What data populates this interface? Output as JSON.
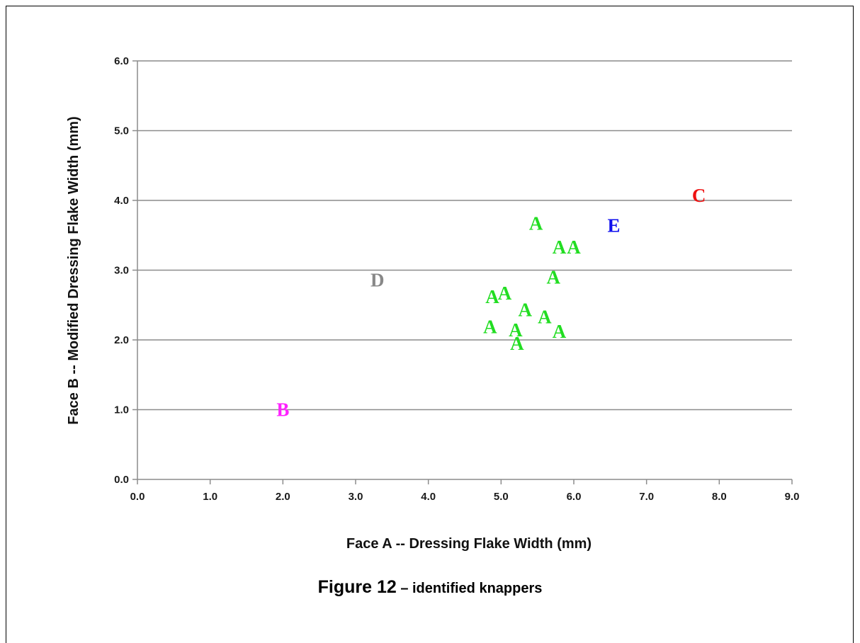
{
  "chart_data": {
    "type": "scatter",
    "xlabel": "Face A --  Dressing Flake Width (mm)",
    "ylabel": "Face B -- Modified Dressing Flake Width (mm)",
    "xlim": [
      0,
      9
    ],
    "ylim": [
      0,
      6
    ],
    "x_ticks": [
      "0.0",
      "1.0",
      "2.0",
      "3.0",
      "4.0",
      "5.0",
      "6.0",
      "7.0",
      "8.0",
      "9.0"
    ],
    "y_ticks": [
      "0.0",
      "1.0",
      "2.0",
      "3.0",
      "4.0",
      "5.0",
      "6.0"
    ],
    "grid": "horizontal",
    "series": [
      {
        "name": "A",
        "color": "#22dd22",
        "points": [
          {
            "x": 5.48,
            "y": 3.67
          },
          {
            "x": 5.8,
            "y": 3.33
          },
          {
            "x": 6.0,
            "y": 3.33
          },
          {
            "x": 5.72,
            "y": 2.9
          },
          {
            "x": 4.88,
            "y": 2.62
          },
          {
            "x": 5.05,
            "y": 2.67
          },
          {
            "x": 5.33,
            "y": 2.43
          },
          {
            "x": 5.6,
            "y": 2.33
          },
          {
            "x": 4.85,
            "y": 2.19
          },
          {
            "x": 5.2,
            "y": 2.14
          },
          {
            "x": 5.8,
            "y": 2.12
          },
          {
            "x": 5.22,
            "y": 1.95
          }
        ]
      },
      {
        "name": "B",
        "color": "#ff22ff",
        "points": [
          {
            "x": 2.0,
            "y": 1.0
          }
        ]
      },
      {
        "name": "C",
        "color": "#ee1111",
        "points": [
          {
            "x": 7.72,
            "y": 4.07
          }
        ]
      },
      {
        "name": "D",
        "color": "#888888",
        "points": [
          {
            "x": 3.3,
            "y": 2.86
          }
        ]
      },
      {
        "name": "E",
        "color": "#1111ee",
        "points": [
          {
            "x": 6.55,
            "y": 3.64
          }
        ]
      }
    ]
  },
  "caption": {
    "figure": "Figure 12",
    "text": " – identified knappers"
  }
}
